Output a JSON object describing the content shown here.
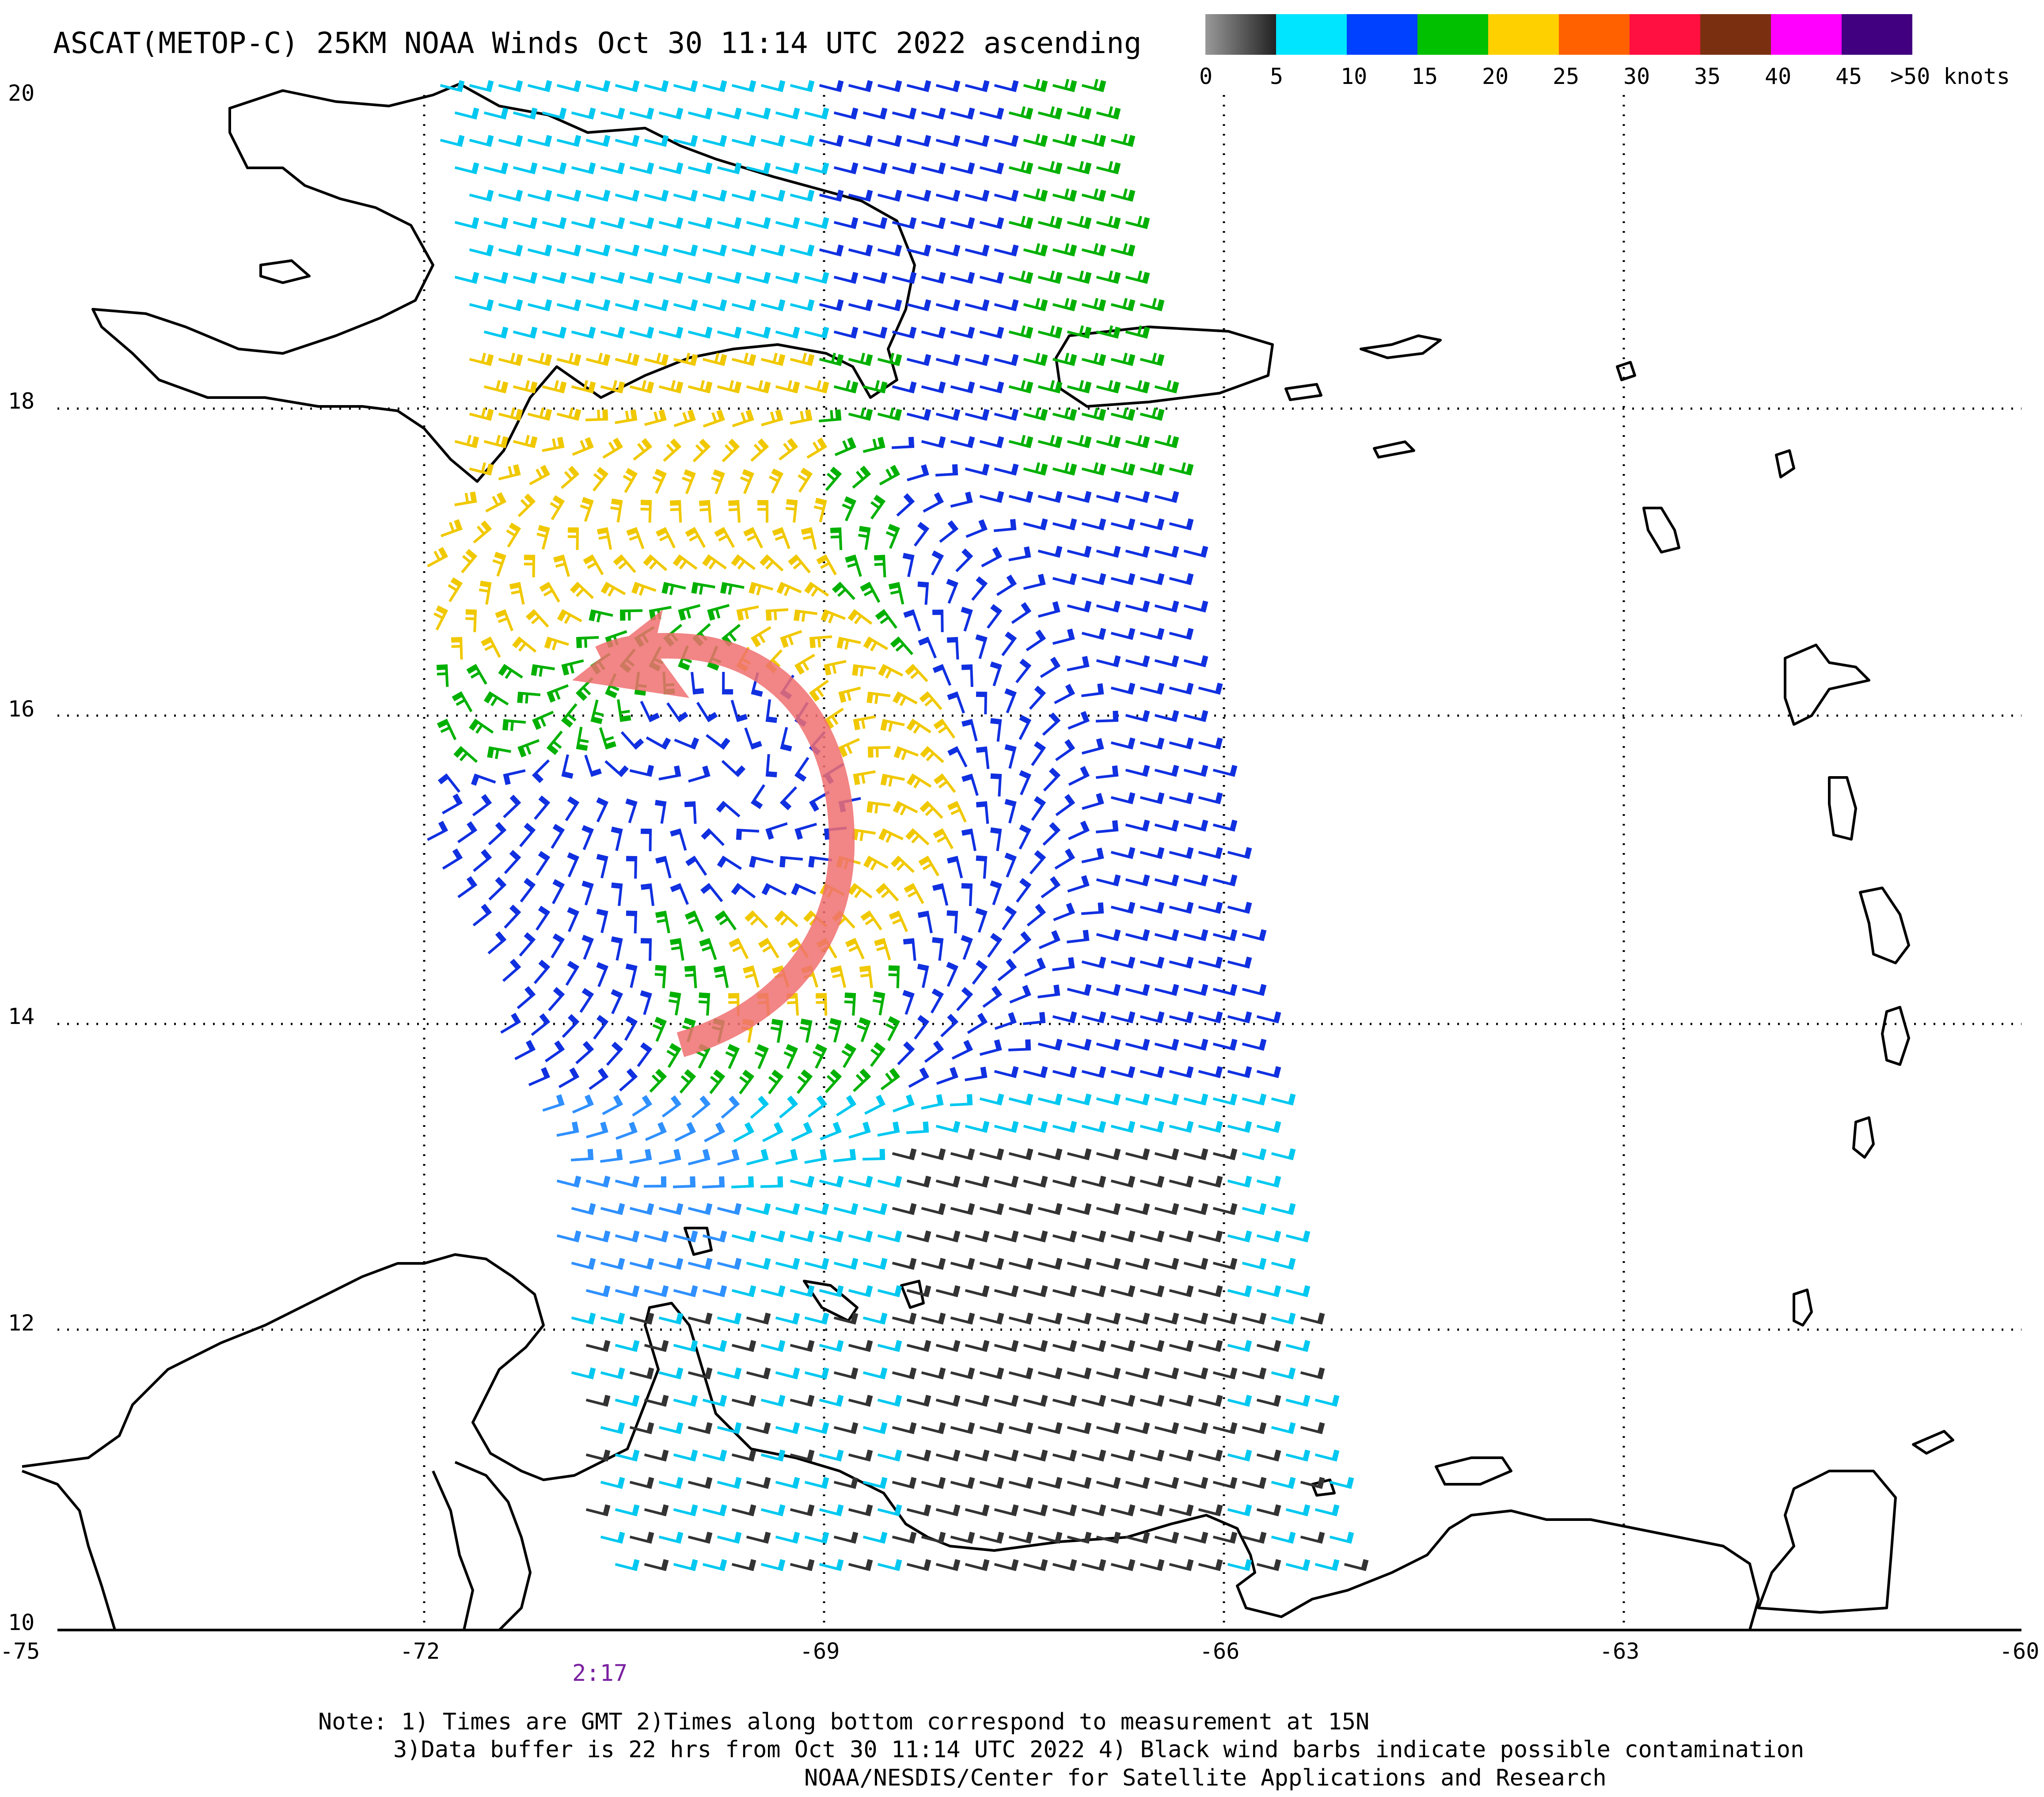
{
  "title": "ASCAT(METOP-C) 25KM NOAA Winds Oct 30 11:14 UTC 2022 ascending",
  "legend": {
    "colors": [
      "#555555",
      "#00e5ff",
      "#0040ff",
      "#00c000",
      "#ffd000",
      "#ff6000",
      "#ff1040",
      "#7a3010",
      "#ff00ff",
      "#40007f"
    ],
    "labels": [
      "0",
      "5",
      "10",
      "15",
      "20",
      "25",
      "30",
      "35",
      "40",
      "45",
      ">50 knots"
    ]
  },
  "axes": {
    "lon_range": [
      -75,
      -60
    ],
    "lat_range": [
      10,
      20
    ],
    "lon_ticks": [
      "-75",
      "-72",
      "-69",
      "-66",
      "-63",
      "-60"
    ],
    "lat_ticks": [
      "20",
      "18",
      "16",
      "14",
      "12",
      "10"
    ]
  },
  "time_label": "2:17",
  "time_label_color": "#7a20a0",
  "notes": [
    "Note: 1) Times are GMT 2)Times along bottom correspond to measurement at 15N",
    "3)Data buffer is 22 hrs from Oct 30 11:14 UTC 2022 4) Black wind barbs indicate possible contamination",
    "NOAA/NESDIS/Center for Satellite Applications and Research"
  ],
  "annotation": {
    "color": "#f07070",
    "icon": "curved-arrow-icon"
  }
}
